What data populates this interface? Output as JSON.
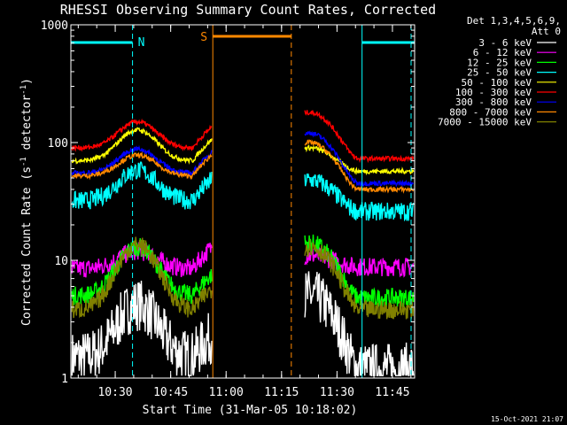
{
  "chart_data": {
    "type": "line",
    "title": "RHESSI Observing Summary Count Rates, Corrected",
    "xlabel": "Start Time (31-Mar-05 10:18:02)",
    "ylabel_main": "Corrected Count Rate (s",
    "ylabel_sup1": "-1",
    "ylabel_mid": " detector",
    "ylabel_sup2": "-1",
    "ylabel_end": ")",
    "y_scale": "log",
    "ylim": [
      1,
      1000
    ],
    "xlim_minutes": [
      10.3,
      11.85
    ],
    "x_ticks": [
      "10:30",
      "10:45",
      "11:00",
      "11:15",
      "11:30",
      "11:45"
    ],
    "x_tick_values": [
      10.5,
      10.75,
      11.0,
      11.25,
      11.5,
      11.75
    ],
    "y_ticks": [
      "1",
      "10",
      "100",
      "1000"
    ],
    "y_tick_values": [
      1,
      10,
      100,
      1000
    ],
    "legend_header": [
      "Det 1,3,4,5,6,9,",
      "Att 0"
    ],
    "legend_position": "right",
    "annotations": {
      "N": "N",
      "S": "S",
      "night_color": "#00ffff",
      "saa_color": "#ff8800",
      "night_periods": [
        [
          10.3,
          10.578
        ],
        [
          11.613,
          11.85
        ]
      ],
      "saa_period": [
        10.94,
        11.294
      ],
      "gap": [
        10.94,
        11.35
      ]
    },
    "timestamp": "15-Oct-2021 21:07",
    "series": [
      {
        "name": "3 - 6 keV",
        "color": "#ffffff",
        "base": 1.5,
        "peak": 4.2,
        "post": 5.0,
        "tail": 1.2
      },
      {
        "name": "6 - 12 keV",
        "color": "#ff00ff",
        "base": 8.5,
        "peak": 12.0,
        "post": 11.0,
        "tail": 8.8
      },
      {
        "name": "12 - 25 keV",
        "color": "#00ff00",
        "base": 5.0,
        "peak": 13.0,
        "post": 14.0,
        "tail": 4.8
      },
      {
        "name": "25 - 50 keV",
        "color": "#00ffff",
        "base": 32.0,
        "peak": 58.0,
        "post": 48.0,
        "tail": 26.0
      },
      {
        "name": "50 - 100 keV",
        "color": "#ffff00",
        "base": 70.0,
        "peak": 128.0,
        "post": 90.0,
        "tail": 57.0
      },
      {
        "name": "100 - 300 keV",
        "color": "#ff0000",
        "base": 90.0,
        "peak": 150.0,
        "post": 180.0,
        "tail": 73.0
      },
      {
        "name": "300 - 800 keV",
        "color": "#0000ff",
        "base": 55.0,
        "peak": 88.0,
        "post": 120.0,
        "tail": 45.0
      },
      {
        "name": "800 - 7000 keV",
        "color": "#ff8800",
        "base": 52.0,
        "peak": 78.0,
        "post": 100.0,
        "tail": 40.0
      },
      {
        "name": "7000 - 15000 keV",
        "color": "#808000",
        "base": 3.8,
        "peak": 13.5,
        "post": 13.0,
        "tail": 3.8
      }
    ]
  }
}
